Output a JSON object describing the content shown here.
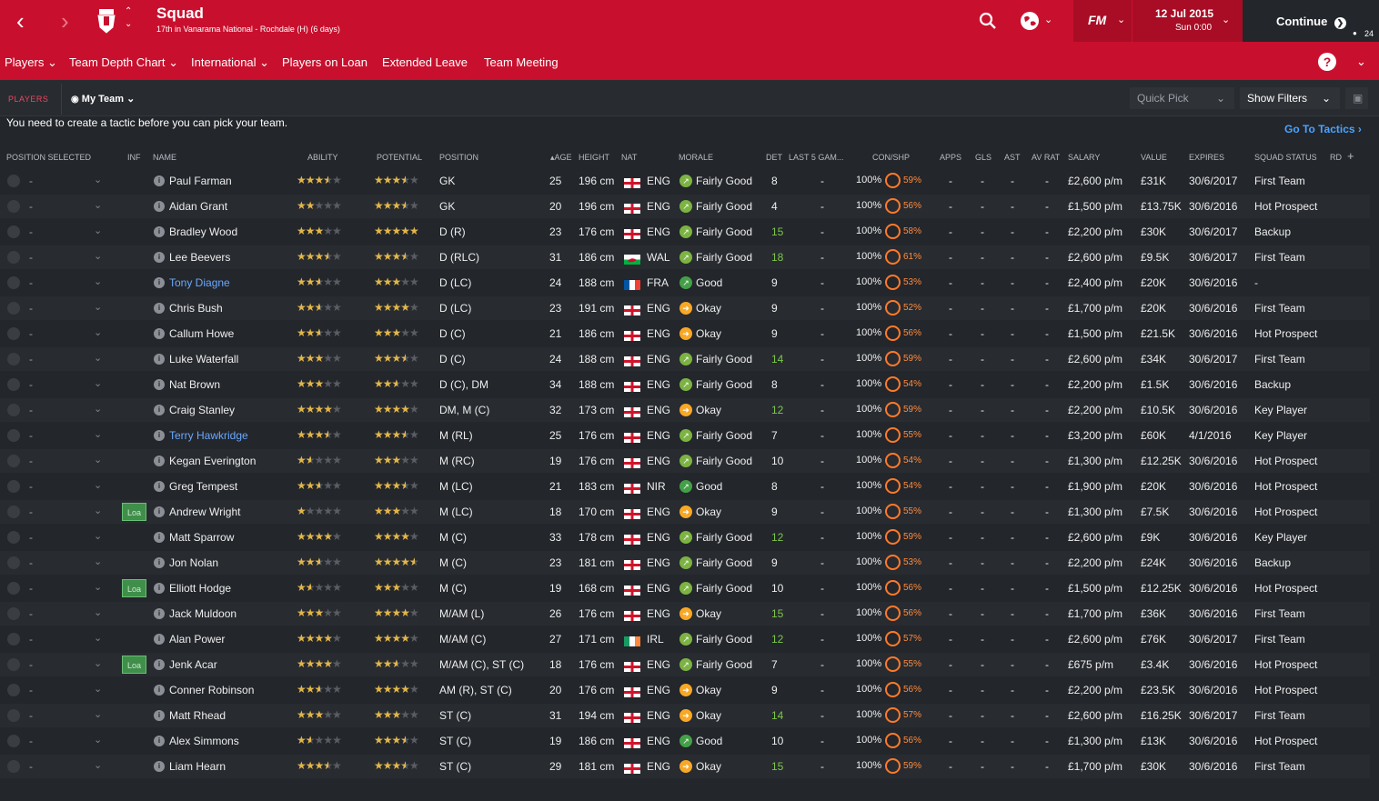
{
  "header": {
    "title": "Squad",
    "subtitle": "17th in Vanarama National - Rochdale (H) (6 days)",
    "date": "12 Jul 2015",
    "time": "Sun 0:00",
    "continue": "Continue",
    "fm_logo": "FM",
    "inbox_count": "24"
  },
  "subnav": {
    "items": [
      "Players",
      "Team Depth Chart",
      "International",
      "Players on Loan",
      "Extended Leave",
      "Team Meeting"
    ],
    "help": "?"
  },
  "toolbar": {
    "players_tab": "PLAYERS",
    "view": "My Team",
    "quick_pick": "Quick Pick",
    "show_filters": "Show Filters"
  },
  "notice": "You need to create a tactic before you can pick your team.",
  "go_to_tactics": "Go To Tactics",
  "columns": [
    "POSITION SELECTED",
    "INF",
    "NAME",
    "ABILITY",
    "POTENTIAL",
    "POSITION",
    "AGE",
    "HEIGHT",
    "NAT",
    "MORALE",
    "DET",
    "LAST 5 GAM...",
    "CON/SHP",
    "APPS",
    "GLS",
    "AST",
    "AV RAT",
    "SALARY",
    "VALUE",
    "EXPIRES",
    "SQUAD STATUS",
    "RD"
  ],
  "players": [
    {
      "sel": "-",
      "inf": "",
      "name": "Paul Farman",
      "blue": false,
      "ab": 3.5,
      "pot": 3.5,
      "pos": "GK",
      "age": "25",
      "ht": "196 cm",
      "nat": "ENG",
      "flag": "eng",
      "mor": "Fairly Good",
      "det": "8",
      "dg": false,
      "l5": "-",
      "con": "100%",
      "shp": "59%",
      "apps": "-",
      "gls": "-",
      "ast": "-",
      "av": "-",
      "sal": "£2,600 p/m",
      "val": "£31K",
      "exp": "30/6/2017",
      "st": "First Team"
    },
    {
      "sel": "-",
      "inf": "",
      "name": "Aidan Grant",
      "blue": false,
      "ab": 2,
      "pot": 3.5,
      "pos": "GK",
      "age": "20",
      "ht": "196 cm",
      "nat": "ENG",
      "flag": "eng",
      "mor": "Fairly Good",
      "det": "4",
      "dg": false,
      "l5": "-",
      "con": "100%",
      "shp": "56%",
      "apps": "-",
      "gls": "-",
      "ast": "-",
      "av": "-",
      "sal": "£1,500 p/m",
      "val": "£13.75K",
      "exp": "30/6/2016",
      "st": "Hot Prospect"
    },
    {
      "sel": "-",
      "inf": "",
      "name": "Bradley Wood",
      "blue": false,
      "ab": 3,
      "pot": 5,
      "pos": "D (R)",
      "age": "23",
      "ht": "176 cm",
      "nat": "ENG",
      "flag": "eng",
      "mor": "Fairly Good",
      "det": "15",
      "dg": true,
      "l5": "-",
      "con": "100%",
      "shp": "58%",
      "apps": "-",
      "gls": "-",
      "ast": "-",
      "av": "-",
      "sal": "£2,200 p/m",
      "val": "£30K",
      "exp": "30/6/2017",
      "st": "Backup"
    },
    {
      "sel": "-",
      "inf": "",
      "name": "Lee Beevers",
      "blue": false,
      "ab": 3.5,
      "pot": 3.5,
      "pos": "D (RLC)",
      "age": "31",
      "ht": "186 cm",
      "nat": "WAL",
      "flag": "wal",
      "mor": "Fairly Good",
      "det": "18",
      "dg": true,
      "l5": "-",
      "con": "100%",
      "shp": "61%",
      "apps": "-",
      "gls": "-",
      "ast": "-",
      "av": "-",
      "sal": "£2,600 p/m",
      "val": "£9.5K",
      "exp": "30/6/2017",
      "st": "First Team"
    },
    {
      "sel": "-",
      "inf": "",
      "name": "Tony Diagne",
      "blue": true,
      "ab": 2.5,
      "pot": 3,
      "pos": "D (LC)",
      "age": "24",
      "ht": "188 cm",
      "nat": "FRA",
      "flag": "fra",
      "mor": "Good",
      "det": "9",
      "dg": false,
      "l5": "-",
      "con": "100%",
      "shp": "53%",
      "apps": "-",
      "gls": "-",
      "ast": "-",
      "av": "-",
      "sal": "£2,400 p/m",
      "val": "£20K",
      "exp": "30/6/2016",
      "st": "-"
    },
    {
      "sel": "-",
      "inf": "",
      "name": "Chris Bush",
      "blue": false,
      "ab": 2.5,
      "pot": 4,
      "pos": "D (LC)",
      "age": "23",
      "ht": "191 cm",
      "nat": "ENG",
      "flag": "eng",
      "mor": "Okay",
      "det": "9",
      "dg": false,
      "l5": "-",
      "con": "100%",
      "shp": "52%",
      "apps": "-",
      "gls": "-",
      "ast": "-",
      "av": "-",
      "sal": "£1,700 p/m",
      "val": "£20K",
      "exp": "30/6/2016",
      "st": "First Team"
    },
    {
      "sel": "-",
      "inf": "",
      "name": "Callum Howe",
      "blue": false,
      "ab": 2.5,
      "pot": 3,
      "pos": "D (C)",
      "age": "21",
      "ht": "186 cm",
      "nat": "ENG",
      "flag": "eng",
      "mor": "Okay",
      "det": "9",
      "dg": false,
      "l5": "-",
      "con": "100%",
      "shp": "56%",
      "apps": "-",
      "gls": "-",
      "ast": "-",
      "av": "-",
      "sal": "£1,500 p/m",
      "val": "£21.5K",
      "exp": "30/6/2016",
      "st": "Hot Prospect"
    },
    {
      "sel": "-",
      "inf": "",
      "name": "Luke Waterfall",
      "blue": false,
      "ab": 3,
      "pot": 3.5,
      "pos": "D (C)",
      "age": "24",
      "ht": "188 cm",
      "nat": "ENG",
      "flag": "eng",
      "mor": "Fairly Good",
      "det": "14",
      "dg": true,
      "l5": "-",
      "con": "100%",
      "shp": "59%",
      "apps": "-",
      "gls": "-",
      "ast": "-",
      "av": "-",
      "sal": "£2,600 p/m",
      "val": "£34K",
      "exp": "30/6/2017",
      "st": "First Team"
    },
    {
      "sel": "-",
      "inf": "",
      "name": "Nat Brown",
      "blue": false,
      "ab": 3,
      "pot": 2.5,
      "pos": "D (C), DM",
      "age": "34",
      "ht": "188 cm",
      "nat": "ENG",
      "flag": "eng",
      "mor": "Fairly Good",
      "det": "8",
      "dg": false,
      "l5": "-",
      "con": "100%",
      "shp": "54%",
      "apps": "-",
      "gls": "-",
      "ast": "-",
      "av": "-",
      "sal": "£2,200 p/m",
      "val": "£1.5K",
      "exp": "30/6/2016",
      "st": "Backup"
    },
    {
      "sel": "-",
      "inf": "",
      "name": "Craig Stanley",
      "blue": false,
      "ab": 4,
      "pot": 4,
      "pos": "DM, M (C)",
      "age": "32",
      "ht": "173 cm",
      "nat": "ENG",
      "flag": "eng",
      "mor": "Okay",
      "det": "12",
      "dg": true,
      "l5": "-",
      "con": "100%",
      "shp": "59%",
      "apps": "-",
      "gls": "-",
      "ast": "-",
      "av": "-",
      "sal": "£2,200 p/m",
      "val": "£10.5K",
      "exp": "30/6/2016",
      "st": "Key Player"
    },
    {
      "sel": "-",
      "inf": "",
      "name": "Terry Hawkridge",
      "blue": true,
      "ab": 3.5,
      "pot": 3.5,
      "pos": "M (RL)",
      "age": "25",
      "ht": "176 cm",
      "nat": "ENG",
      "flag": "eng",
      "mor": "Fairly Good",
      "det": "7",
      "dg": false,
      "l5": "-",
      "con": "100%",
      "shp": "55%",
      "apps": "-",
      "gls": "-",
      "ast": "-",
      "av": "-",
      "sal": "£3,200 p/m",
      "val": "£60K",
      "exp": "4/1/2016",
      "st": "Key Player"
    },
    {
      "sel": "-",
      "inf": "",
      "name": "Kegan Everington",
      "blue": false,
      "ab": 1.5,
      "pot": 3,
      "pos": "M (RC)",
      "age": "19",
      "ht": "176 cm",
      "nat": "ENG",
      "flag": "eng",
      "mor": "Fairly Good",
      "det": "10",
      "dg": false,
      "l5": "-",
      "con": "100%",
      "shp": "54%",
      "apps": "-",
      "gls": "-",
      "ast": "-",
      "av": "-",
      "sal": "£1,300 p/m",
      "val": "£12.25K",
      "exp": "30/6/2016",
      "st": "Hot Prospect"
    },
    {
      "sel": "-",
      "inf": "",
      "name": "Greg Tempest",
      "blue": false,
      "ab": 2.5,
      "pot": 3.5,
      "pos": "M (LC)",
      "age": "21",
      "ht": "183 cm",
      "nat": "NIR",
      "flag": "nir",
      "mor": "Good",
      "det": "8",
      "dg": false,
      "l5": "-",
      "con": "100%",
      "shp": "54%",
      "apps": "-",
      "gls": "-",
      "ast": "-",
      "av": "-",
      "sal": "£1,900 p/m",
      "val": "£20K",
      "exp": "30/6/2016",
      "st": "Hot Prospect"
    },
    {
      "sel": "-",
      "inf": "Loa",
      "name": "Andrew Wright",
      "blue": false,
      "ab": 1,
      "pot": 3,
      "pos": "M (LC)",
      "age": "18",
      "ht": "170 cm",
      "nat": "ENG",
      "flag": "eng",
      "mor": "Okay",
      "det": "9",
      "dg": false,
      "l5": "-",
      "con": "100%",
      "shp": "55%",
      "apps": "-",
      "gls": "-",
      "ast": "-",
      "av": "-",
      "sal": "£1,300 p/m",
      "val": "£7.5K",
      "exp": "30/6/2016",
      "st": "Hot Prospect"
    },
    {
      "sel": "-",
      "inf": "",
      "name": "Matt Sparrow",
      "blue": false,
      "ab": 4,
      "pot": 4,
      "pos": "M (C)",
      "age": "33",
      "ht": "178 cm",
      "nat": "ENG",
      "flag": "eng",
      "mor": "Fairly Good",
      "det": "12",
      "dg": true,
      "l5": "-",
      "con": "100%",
      "shp": "59%",
      "apps": "-",
      "gls": "-",
      "ast": "-",
      "av": "-",
      "sal": "£2,600 p/m",
      "val": "£9K",
      "exp": "30/6/2016",
      "st": "Key Player"
    },
    {
      "sel": "-",
      "inf": "",
      "name": "Jon Nolan",
      "blue": false,
      "ab": 2.5,
      "pot": 4.5,
      "pos": "M (C)",
      "age": "23",
      "ht": "181 cm",
      "nat": "ENG",
      "flag": "eng",
      "mor": "Fairly Good",
      "det": "9",
      "dg": false,
      "l5": "-",
      "con": "100%",
      "shp": "53%",
      "apps": "-",
      "gls": "-",
      "ast": "-",
      "av": "-",
      "sal": "£2,200 p/m",
      "val": "£24K",
      "exp": "30/6/2016",
      "st": "Backup"
    },
    {
      "sel": "-",
      "inf": "Loa",
      "name": "Elliott Hodge",
      "blue": false,
      "ab": 1.5,
      "pot": 3,
      "pos": "M (C)",
      "age": "19",
      "ht": "168 cm",
      "nat": "ENG",
      "flag": "eng",
      "mor": "Fairly Good",
      "det": "10",
      "dg": false,
      "l5": "-",
      "con": "100%",
      "shp": "56%",
      "apps": "-",
      "gls": "-",
      "ast": "-",
      "av": "-",
      "sal": "£1,500 p/m",
      "val": "£12.25K",
      "exp": "30/6/2016",
      "st": "Hot Prospect"
    },
    {
      "sel": "-",
      "inf": "",
      "name": "Jack Muldoon",
      "blue": false,
      "ab": 3,
      "pot": 4,
      "pos": "M/AM (L)",
      "age": "26",
      "ht": "176 cm",
      "nat": "ENG",
      "flag": "eng",
      "mor": "Okay",
      "det": "15",
      "dg": true,
      "l5": "-",
      "con": "100%",
      "shp": "56%",
      "apps": "-",
      "gls": "-",
      "ast": "-",
      "av": "-",
      "sal": "£1,700 p/m",
      "val": "£36K",
      "exp": "30/6/2016",
      "st": "First Team"
    },
    {
      "sel": "-",
      "inf": "",
      "name": "Alan Power",
      "blue": false,
      "ab": 4,
      "pot": 4,
      "pos": "M/AM (C)",
      "age": "27",
      "ht": "171 cm",
      "nat": "IRL",
      "flag": "irl",
      "mor": "Fairly Good",
      "det": "12",
      "dg": true,
      "l5": "-",
      "con": "100%",
      "shp": "57%",
      "apps": "-",
      "gls": "-",
      "ast": "-",
      "av": "-",
      "sal": "£2,600 p/m",
      "val": "£76K",
      "exp": "30/6/2017",
      "st": "First Team"
    },
    {
      "sel": "-",
      "inf": "Loa",
      "name": "Jenk Acar",
      "blue": false,
      "ab": 4,
      "pot": 2.5,
      "pos": "M/AM (C), ST (C)",
      "age": "18",
      "ht": "176 cm",
      "nat": "ENG",
      "flag": "eng",
      "mor": "Fairly Good",
      "det": "7",
      "dg": false,
      "l5": "-",
      "con": "100%",
      "shp": "55%",
      "apps": "-",
      "gls": "-",
      "ast": "-",
      "av": "-",
      "sal": "£675 p/m",
      "val": "£3.4K",
      "exp": "30/6/2016",
      "st": "Hot Prospect"
    },
    {
      "sel": "-",
      "inf": "",
      "name": "Conner Robinson",
      "blue": false,
      "ab": 2.5,
      "pot": 4,
      "pos": "AM (R), ST (C)",
      "age": "20",
      "ht": "176 cm",
      "nat": "ENG",
      "flag": "eng",
      "mor": "Okay",
      "det": "9",
      "dg": false,
      "l5": "-",
      "con": "100%",
      "shp": "56%",
      "apps": "-",
      "gls": "-",
      "ast": "-",
      "av": "-",
      "sal": "£2,200 p/m",
      "val": "£23.5K",
      "exp": "30/6/2016",
      "st": "Hot Prospect"
    },
    {
      "sel": "-",
      "inf": "",
      "name": "Matt Rhead",
      "blue": false,
      "ab": 3,
      "pot": 3,
      "pos": "ST (C)",
      "age": "31",
      "ht": "194 cm",
      "nat": "ENG",
      "flag": "eng",
      "mor": "Okay",
      "det": "14",
      "dg": true,
      "l5": "-",
      "con": "100%",
      "shp": "57%",
      "apps": "-",
      "gls": "-",
      "ast": "-",
      "av": "-",
      "sal": "£2,600 p/m",
      "val": "£16.25K",
      "exp": "30/6/2017",
      "st": "First Team"
    },
    {
      "sel": "-",
      "inf": "",
      "name": "Alex Simmons",
      "blue": false,
      "ab": 1.5,
      "pot": 3.5,
      "pos": "ST (C)",
      "age": "19",
      "ht": "186 cm",
      "nat": "ENG",
      "flag": "eng",
      "mor": "Good",
      "det": "10",
      "dg": false,
      "l5": "-",
      "con": "100%",
      "shp": "56%",
      "apps": "-",
      "gls": "-",
      "ast": "-",
      "av": "-",
      "sal": "£1,300 p/m",
      "val": "£13K",
      "exp": "30/6/2016",
      "st": "Hot Prospect"
    },
    {
      "sel": "-",
      "inf": "",
      "name": "Liam Hearn",
      "blue": false,
      "ab": 3.5,
      "pot": 3.5,
      "pos": "ST (C)",
      "age": "29",
      "ht": "181 cm",
      "nat": "ENG",
      "flag": "eng",
      "mor": "Okay",
      "det": "15",
      "dg": true,
      "l5": "-",
      "con": "100%",
      "shp": "59%",
      "apps": "-",
      "gls": "-",
      "ast": "-",
      "av": "-",
      "sal": "£1,700 p/m",
      "val": "£30K",
      "exp": "30/6/2016",
      "st": "First Team"
    }
  ],
  "colors": {
    "brand_red": "#c8102e",
    "background": "#23262b",
    "accent_blue": "#4aa3ff",
    "det_green": "#7cc74b",
    "shp_orange": "#ff8b3d"
  }
}
